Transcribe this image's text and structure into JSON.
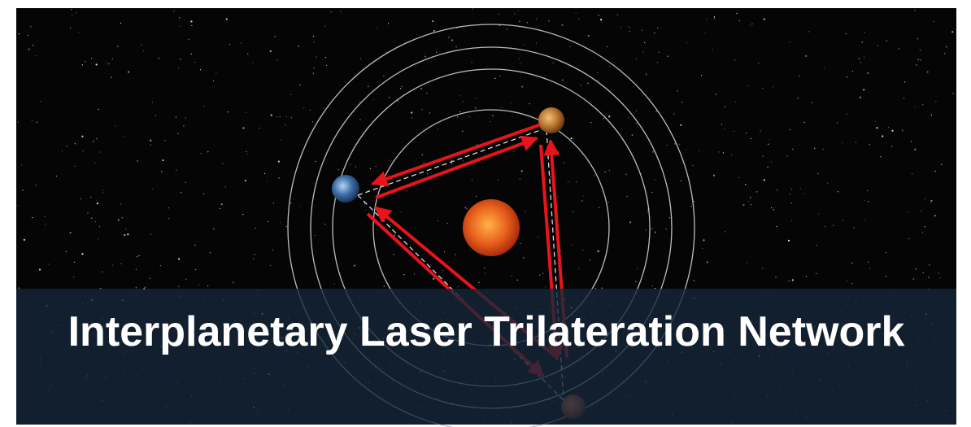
{
  "title": "Interplanetary Laser Trilateration Network"
}
